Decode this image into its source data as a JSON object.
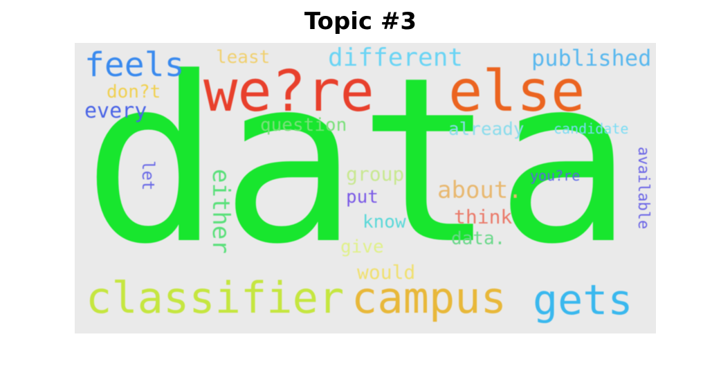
{
  "title": "Topic #3",
  "words": {
    "data": {
      "text": "data",
      "color": "#18e62e"
    },
    "were": {
      "text": "we?re",
      "color": "#e8402c"
    },
    "else": {
      "text": "else",
      "color": "#eb6420"
    },
    "classifier": {
      "text": "classifier",
      "color": "#c5e640"
    },
    "campus": {
      "text": "campus",
      "color": "#e8b83a"
    },
    "gets": {
      "text": "gets",
      "color": "#3ab8ee"
    },
    "feels": {
      "text": "feels",
      "color": "#3a8aee"
    },
    "different": {
      "text": "different",
      "color": "#6ad4f4"
    },
    "published": {
      "text": "published",
      "color": "#5ab8ee"
    },
    "least": {
      "text": "least",
      "color": "#f0d070"
    },
    "dont": {
      "text": "don?t",
      "color": "#f0d050"
    },
    "every": {
      "text": "every",
      "color": "#4a64e6"
    },
    "question": {
      "text": "question",
      "color": "#7ae07a"
    },
    "already": {
      "text": "already",
      "color": "#8adcec"
    },
    "candidate": {
      "text": "candidate",
      "color": "#7adcf4"
    },
    "let": {
      "text": "let",
      "color": "#6a6ae6"
    },
    "either": {
      "text": "either",
      "color": "#5ae07a"
    },
    "group": {
      "text": "group",
      "color": "#c8e890"
    },
    "about": {
      "text": "about.",
      "color": "#e8b870"
    },
    "youre": {
      "text": "you?re",
      "color": "#5a64e6"
    },
    "available": {
      "text": "available",
      "color": "#6a64e6"
    },
    "put": {
      "text": "put",
      "color": "#7a5ae6"
    },
    "know": {
      "text": "know",
      "color": "#5ad8d8"
    },
    "think": {
      "text": "think",
      "color": "#ea7a6a"
    },
    "data2": {
      "text": "data.",
      "color": "#6ad88a"
    },
    "give": {
      "text": "give",
      "color": "#e0f08a"
    },
    "would": {
      "text": "would",
      "color": "#f0e070"
    }
  }
}
